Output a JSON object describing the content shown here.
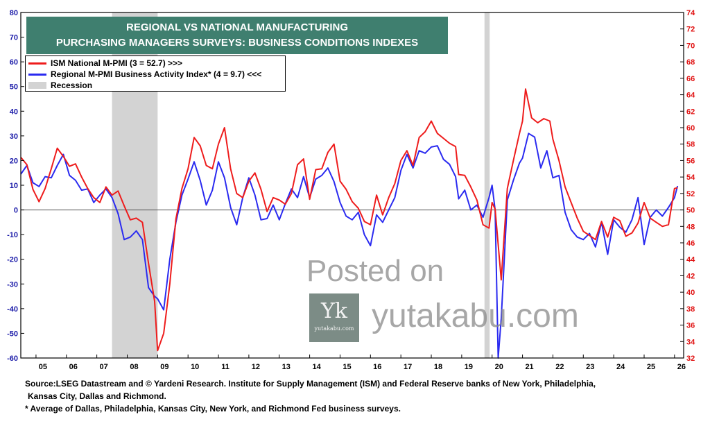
{
  "title": {
    "line1": "REGIONAL VS NATIONAL MANUFACTURING",
    "line2": "PURCHASING MANAGERS SURVEYS: BUSINESS CONDITIONS INDEXES"
  },
  "legend": {
    "ism_label": "ISM National M-PMI (3 = 52.7) >>>",
    "regional_label": "Regional M-PMI Business Activity Index* (4 = 9.7) <<<",
    "recession_label": "Recession"
  },
  "footer": {
    "source_line1": "Source:LSEG Datastream and © Yardeni Research. Institute for Supply Management (ISM) and Federal Reserve banks of New York, Philadelphia,",
    "source_line2": "Kansas City, Dallas and Richmond.",
    "note": "* Average of Dallas, Philadelphia, Kansas City, New York, and Richmond Fed business surveys."
  },
  "watermark": {
    "line1": "Posted on",
    "line2": "yutakabu.com",
    "logo_glyph": "Yk",
    "logo_text": "yutakabu.com"
  },
  "colors": {
    "ism": "#ee1c1c",
    "regional": "#2a2af0",
    "recession": "#d3d3d3",
    "title_bg": "#3f7f6f",
    "left_axis": "#1a1aa8",
    "right_axis": "#e01010"
  },
  "chart_data": {
    "type": "line",
    "x_range": [
      2004.5,
      2026.3
    ],
    "xticks": [
      {
        "label": "05",
        "x": 2005.0
      },
      {
        "label": "06",
        "x": 2006.0
      },
      {
        "label": "07",
        "x": 2007.0
      },
      {
        "label": "08",
        "x": 2008.0
      },
      {
        "label": "09",
        "x": 2009.0
      },
      {
        "label": "10",
        "x": 2010.0
      },
      {
        "label": "11",
        "x": 2011.0
      },
      {
        "label": "12",
        "x": 2012.0
      },
      {
        "label": "13",
        "x": 2013.0
      },
      {
        "label": "14",
        "x": 2014.0
      },
      {
        "label": "15",
        "x": 2015.0
      },
      {
        "label": "16",
        "x": 2016.0
      },
      {
        "label": "17",
        "x": 2017.0
      },
      {
        "label": "18",
        "x": 2018.0
      },
      {
        "label": "19",
        "x": 2019.0
      },
      {
        "label": "20",
        "x": 2020.0
      },
      {
        "label": "21",
        "x": 2021.0
      },
      {
        "label": "22",
        "x": 2022.0
      },
      {
        "label": "23",
        "x": 2023.0
      },
      {
        "label": "24",
        "x": 2024.0
      },
      {
        "label": "25",
        "x": 2025.0
      },
      {
        "label": "26",
        "x": 2026.0
      }
    ],
    "y_left": {
      "min": -60,
      "max": 80,
      "step": 10
    },
    "y_right": {
      "min": 32,
      "max": 74,
      "step": 2
    },
    "recessions": [
      [
        2007.5,
        2009.0
      ],
      [
        2019.75,
        2019.92
      ]
    ],
    "series": [
      {
        "name": "ISM National M-PMI",
        "axis": "right",
        "points": [
          [
            2004.5,
            56.4
          ],
          [
            2004.7,
            55.5
          ],
          [
            2004.9,
            52.5
          ],
          [
            2005.1,
            51.0
          ],
          [
            2005.3,
            52.6
          ],
          [
            2005.5,
            55.0
          ],
          [
            2005.7,
            57.5
          ],
          [
            2005.9,
            56.5
          ],
          [
            2006.1,
            55.3
          ],
          [
            2006.3,
            55.6
          ],
          [
            2006.5,
            54.0
          ],
          [
            2006.7,
            52.6
          ],
          [
            2006.9,
            51.5
          ],
          [
            2007.1,
            50.9
          ],
          [
            2007.3,
            52.8
          ],
          [
            2007.5,
            51.8
          ],
          [
            2007.7,
            52.3
          ],
          [
            2007.9,
            50.5
          ],
          [
            2008.1,
            48.8
          ],
          [
            2008.3,
            49.0
          ],
          [
            2008.5,
            48.5
          ],
          [
            2008.7,
            43.5
          ],
          [
            2008.9,
            38.9
          ],
          [
            2009.0,
            32.9
          ],
          [
            2009.2,
            35.0
          ],
          [
            2009.4,
            41.0
          ],
          [
            2009.6,
            48.9
          ],
          [
            2009.8,
            52.6
          ],
          [
            2010.0,
            55.0
          ],
          [
            2010.2,
            58.8
          ],
          [
            2010.4,
            57.8
          ],
          [
            2010.6,
            55.4
          ],
          [
            2010.8,
            55.0
          ],
          [
            2011.0,
            58.0
          ],
          [
            2011.2,
            60.0
          ],
          [
            2011.4,
            55.0
          ],
          [
            2011.6,
            52.0
          ],
          [
            2011.8,
            51.5
          ],
          [
            2012.0,
            53.5
          ],
          [
            2012.2,
            54.5
          ],
          [
            2012.4,
            52.5
          ],
          [
            2012.6,
            49.8
          ],
          [
            2012.8,
            51.5
          ],
          [
            2013.0,
            51.2
          ],
          [
            2013.2,
            50.7
          ],
          [
            2013.4,
            52.0
          ],
          [
            2013.6,
            55.5
          ],
          [
            2013.8,
            56.2
          ],
          [
            2014.0,
            51.3
          ],
          [
            2014.2,
            54.9
          ],
          [
            2014.4,
            55.0
          ],
          [
            2014.6,
            57.0
          ],
          [
            2014.8,
            58.0
          ],
          [
            2015.0,
            53.5
          ],
          [
            2015.2,
            52.5
          ],
          [
            2015.4,
            51.0
          ],
          [
            2015.6,
            50.2
          ],
          [
            2015.8,
            48.6
          ],
          [
            2016.0,
            48.2
          ],
          [
            2016.2,
            51.8
          ],
          [
            2016.4,
            49.4
          ],
          [
            2016.6,
            51.5
          ],
          [
            2016.8,
            53.2
          ],
          [
            2017.0,
            56.0
          ],
          [
            2017.2,
            57.2
          ],
          [
            2017.4,
            55.4
          ],
          [
            2017.6,
            58.8
          ],
          [
            2017.8,
            59.5
          ],
          [
            2018.0,
            60.8
          ],
          [
            2018.2,
            59.3
          ],
          [
            2018.4,
            58.7
          ],
          [
            2018.6,
            58.1
          ],
          [
            2018.8,
            57.7
          ],
          [
            2018.9,
            54.3
          ],
          [
            2019.1,
            54.2
          ],
          [
            2019.3,
            52.8
          ],
          [
            2019.5,
            51.2
          ],
          [
            2019.7,
            48.2
          ],
          [
            2019.9,
            47.8
          ],
          [
            2020.0,
            50.9
          ],
          [
            2020.1,
            50.1
          ],
          [
            2020.3,
            41.5
          ],
          [
            2020.5,
            52.6
          ],
          [
            2020.7,
            56.0
          ],
          [
            2020.9,
            59.3
          ],
          [
            2021.0,
            60.8
          ],
          [
            2021.1,
            64.7
          ],
          [
            2021.3,
            61.2
          ],
          [
            2021.5,
            60.6
          ],
          [
            2021.7,
            61.1
          ],
          [
            2021.9,
            60.8
          ],
          [
            2022.0,
            58.6
          ],
          [
            2022.2,
            56.0
          ],
          [
            2022.4,
            52.8
          ],
          [
            2022.6,
            50.9
          ],
          [
            2022.8,
            49.0
          ],
          [
            2023.0,
            47.4
          ],
          [
            2023.2,
            46.9
          ],
          [
            2023.4,
            46.4
          ],
          [
            2023.6,
            48.6
          ],
          [
            2023.8,
            46.7
          ],
          [
            2024.0,
            49.1
          ],
          [
            2024.2,
            48.7
          ],
          [
            2024.4,
            46.8
          ],
          [
            2024.6,
            47.2
          ],
          [
            2024.8,
            48.4
          ],
          [
            2025.0,
            50.9
          ],
          [
            2025.2,
            49.0
          ],
          [
            2025.4,
            48.5
          ],
          [
            2025.6,
            48.0
          ],
          [
            2025.8,
            48.2
          ],
          [
            2026.0,
            52.6
          ],
          [
            2026.1,
            52.7
          ]
        ]
      },
      {
        "name": "Regional M-PMI Business Activity Index",
        "axis": "left",
        "points": [
          [
            2004.5,
            14.5
          ],
          [
            2004.7,
            18.0
          ],
          [
            2004.9,
            11.0
          ],
          [
            2005.1,
            9.5
          ],
          [
            2005.3,
            13.5
          ],
          [
            2005.5,
            13.0
          ],
          [
            2005.7,
            18.0
          ],
          [
            2005.9,
            22.5
          ],
          [
            2006.1,
            14.0
          ],
          [
            2006.3,
            12.0
          ],
          [
            2006.5,
            8.0
          ],
          [
            2006.7,
            8.5
          ],
          [
            2006.9,
            3.0
          ],
          [
            2007.1,
            6.0
          ],
          [
            2007.3,
            8.5
          ],
          [
            2007.5,
            5.0
          ],
          [
            2007.7,
            -1.5
          ],
          [
            2007.9,
            -12.0
          ],
          [
            2008.1,
            -11.0
          ],
          [
            2008.3,
            -8.5
          ],
          [
            2008.5,
            -12.0
          ],
          [
            2008.7,
            -31.5
          ],
          [
            2008.9,
            -35.0
          ],
          [
            2009.0,
            -36.0
          ],
          [
            2009.2,
            -40.5
          ],
          [
            2009.4,
            -20.0
          ],
          [
            2009.6,
            -5.0
          ],
          [
            2009.8,
            6.0
          ],
          [
            2010.0,
            12.5
          ],
          [
            2010.2,
            19.5
          ],
          [
            2010.4,
            12.0
          ],
          [
            2010.6,
            2.0
          ],
          [
            2010.8,
            8.0
          ],
          [
            2011.0,
            19.5
          ],
          [
            2011.2,
            13.0
          ],
          [
            2011.4,
            1.0
          ],
          [
            2011.6,
            -6.0
          ],
          [
            2011.8,
            5.0
          ],
          [
            2012.0,
            13.0
          ],
          [
            2012.2,
            6.0
          ],
          [
            2012.4,
            -4.0
          ],
          [
            2012.6,
            -3.5
          ],
          [
            2012.8,
            2.0
          ],
          [
            2013.0,
            -4.0
          ],
          [
            2013.2,
            2.5
          ],
          [
            2013.4,
            8.5
          ],
          [
            2013.6,
            5.0
          ],
          [
            2013.8,
            13.5
          ],
          [
            2014.0,
            5.0
          ],
          [
            2014.2,
            12.5
          ],
          [
            2014.4,
            14.0
          ],
          [
            2014.6,
            17.0
          ],
          [
            2014.8,
            11.5
          ],
          [
            2015.0,
            3.0
          ],
          [
            2015.2,
            -2.5
          ],
          [
            2015.4,
            -4.0
          ],
          [
            2015.6,
            -1.0
          ],
          [
            2015.8,
            -10.0
          ],
          [
            2016.0,
            -14.5
          ],
          [
            2016.2,
            -2.0
          ],
          [
            2016.4,
            -5.0
          ],
          [
            2016.6,
            0.0
          ],
          [
            2016.8,
            5.0
          ],
          [
            2017.0,
            16.0
          ],
          [
            2017.2,
            22.5
          ],
          [
            2017.4,
            17.0
          ],
          [
            2017.6,
            24.0
          ],
          [
            2017.8,
            23.0
          ],
          [
            2018.0,
            25.5
          ],
          [
            2018.2,
            26.0
          ],
          [
            2018.4,
            20.5
          ],
          [
            2018.6,
            18.5
          ],
          [
            2018.8,
            13.5
          ],
          [
            2018.9,
            4.5
          ],
          [
            2019.1,
            8.0
          ],
          [
            2019.3,
            0.0
          ],
          [
            2019.5,
            2.0
          ],
          [
            2019.7,
            -3.0
          ],
          [
            2019.9,
            5.0
          ],
          [
            2020.0,
            10.0
          ],
          [
            2020.1,
            0.0
          ],
          [
            2020.2,
            -60.0
          ],
          [
            2020.3,
            -44.0
          ],
          [
            2020.5,
            4.0
          ],
          [
            2020.7,
            12.0
          ],
          [
            2020.9,
            19.0
          ],
          [
            2021.0,
            21.0
          ],
          [
            2021.2,
            31.0
          ],
          [
            2021.4,
            29.5
          ],
          [
            2021.6,
            17.0
          ],
          [
            2021.8,
            24.0
          ],
          [
            2022.0,
            13.0
          ],
          [
            2022.2,
            14.0
          ],
          [
            2022.4,
            -1.0
          ],
          [
            2022.6,
            -8.0
          ],
          [
            2022.8,
            -11.0
          ],
          [
            2023.0,
            -12.0
          ],
          [
            2023.2,
            -9.5
          ],
          [
            2023.4,
            -15.0
          ],
          [
            2023.6,
            -5.0
          ],
          [
            2023.8,
            -18.0
          ],
          [
            2024.0,
            -4.0
          ],
          [
            2024.2,
            -7.0
          ],
          [
            2024.4,
            -9.0
          ],
          [
            2024.6,
            -4.0
          ],
          [
            2024.8,
            5.0
          ],
          [
            2025.0,
            -14.0
          ],
          [
            2025.2,
            -3.0
          ],
          [
            2025.4,
            0.0
          ],
          [
            2025.6,
            -2.5
          ],
          [
            2025.8,
            1.0
          ],
          [
            2026.0,
            5.0
          ],
          [
            2026.1,
            9.7
          ]
        ]
      }
    ]
  }
}
